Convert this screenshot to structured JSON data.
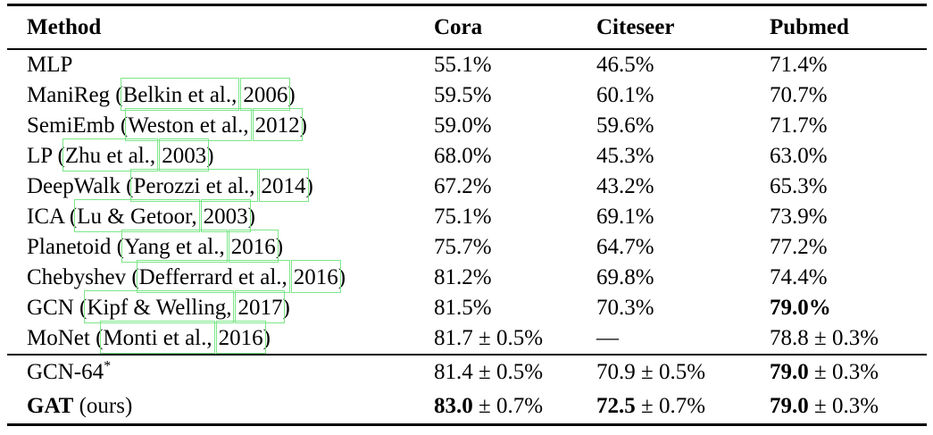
{
  "link_box_color": "#7ce688",
  "header": {
    "method": "Method",
    "cora": "Cora",
    "citeseer": "Citeseer",
    "pubmed": "Pubmed"
  },
  "rows": [
    {
      "mb": "",
      "pre": "MLP",
      "author": "",
      "year": "",
      "post": "",
      "sup": "",
      "cora": {
        "b": "",
        "r": "55.1%"
      },
      "citeseer": {
        "b": "",
        "r": "46.5%"
      },
      "pubmed": {
        "b": "",
        "r": "71.4%"
      }
    },
    {
      "mb": "",
      "pre": "ManiReg (",
      "author": "Belkin et al.,",
      "year": "2006",
      "post": ")",
      "sup": "",
      "cora": {
        "b": "",
        "r": "59.5%"
      },
      "citeseer": {
        "b": "",
        "r": "60.1%"
      },
      "pubmed": {
        "b": "",
        "r": "70.7%"
      }
    },
    {
      "mb": "",
      "pre": "SemiEmb (",
      "author": "Weston et al.,",
      "year": "2012",
      "post": ")",
      "sup": "",
      "cora": {
        "b": "",
        "r": "59.0%"
      },
      "citeseer": {
        "b": "",
        "r": "59.6%"
      },
      "pubmed": {
        "b": "",
        "r": "71.7%"
      }
    },
    {
      "mb": "",
      "pre": "LP (",
      "author": "Zhu et al.,",
      "year": "2003",
      "post": ")",
      "sup": "",
      "cora": {
        "b": "",
        "r": "68.0%"
      },
      "citeseer": {
        "b": "",
        "r": "45.3%"
      },
      "pubmed": {
        "b": "",
        "r": "63.0%"
      }
    },
    {
      "mb": "",
      "pre": "DeepWalk (",
      "author": "Perozzi et al.,",
      "year": "2014",
      "post": ")",
      "sup": "",
      "cora": {
        "b": "",
        "r": "67.2%"
      },
      "citeseer": {
        "b": "",
        "r": "43.2%"
      },
      "pubmed": {
        "b": "",
        "r": "65.3%"
      }
    },
    {
      "mb": "",
      "pre": "ICA (",
      "author": "Lu & Getoor,",
      "year": "2003",
      "post": ")",
      "sup": "",
      "cora": {
        "b": "",
        "r": "75.1%"
      },
      "citeseer": {
        "b": "",
        "r": "69.1%"
      },
      "pubmed": {
        "b": "",
        "r": "73.9%"
      }
    },
    {
      "mb": "",
      "pre": "Planetoid (",
      "author": "Yang et al.,",
      "year": "2016",
      "post": ")",
      "sup": "",
      "cora": {
        "b": "",
        "r": "75.7%"
      },
      "citeseer": {
        "b": "",
        "r": "64.7%"
      },
      "pubmed": {
        "b": "",
        "r": "77.2%"
      }
    },
    {
      "mb": "",
      "pre": "Chebyshev (",
      "author": "Defferrard et al.,",
      "year": "2016",
      "post": ")",
      "sup": "",
      "cora": {
        "b": "",
        "r": "81.2%"
      },
      "citeseer": {
        "b": "",
        "r": "69.8%"
      },
      "pubmed": {
        "b": "",
        "r": "74.4%"
      }
    },
    {
      "mb": "",
      "pre": "GCN (",
      "author": "Kipf & Welling,",
      "year": "2017",
      "post": ")",
      "sup": "",
      "cora": {
        "b": "",
        "r": "81.5%"
      },
      "citeseer": {
        "b": "",
        "r": "70.3%"
      },
      "pubmed": {
        "b": "79.0%",
        "r": ""
      }
    },
    {
      "mb": "",
      "pre": "MoNet (",
      "author": "Monti et al.,",
      "year": "2016",
      "post": ")",
      "sup": "",
      "cora": {
        "b": "",
        "r": "81.7 ± 0.5%"
      },
      "citeseer": {
        "b": "",
        "r": "—"
      },
      "pubmed": {
        "b": "",
        "r": "78.8 ± 0.3%"
      }
    },
    {
      "mb": "",
      "pre": "GCN-64",
      "author": "",
      "year": "",
      "post": "",
      "sup": "*",
      "cora": {
        "b": "",
        "r": "81.4 ± 0.5%"
      },
      "citeseer": {
        "b": "",
        "r": "70.9 ± 0.5%"
      },
      "pubmed": {
        "b": "79.0",
        "r": " ± 0.3%"
      }
    },
    {
      "mb": "GAT",
      "pre": " (ours)",
      "author": "",
      "year": "",
      "post": "",
      "sup": "",
      "cora": {
        "b": "83.0",
        "r": " ± 0.7%"
      },
      "citeseer": {
        "b": "72.5",
        "r": " ± 0.7%"
      },
      "pubmed": {
        "b": "79.0",
        "r": " ± 0.3%"
      }
    }
  ]
}
